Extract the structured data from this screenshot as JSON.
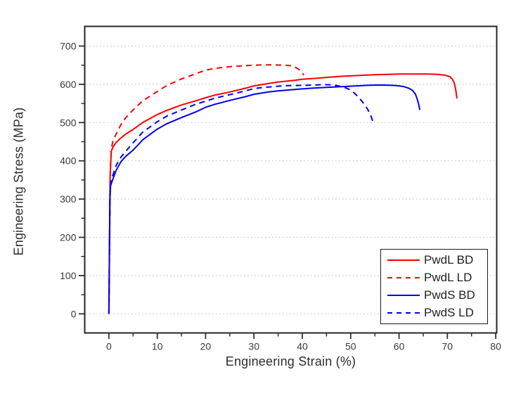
{
  "chart_data": {
    "type": "line",
    "title": "",
    "xlabel": "Engineering Strain (%)",
    "ylabel": "Engineering Stress (MPa)",
    "xlim": [
      -5,
      80.2
    ],
    "ylim": [
      -50,
      751.5
    ],
    "x_ticks": [
      0,
      10,
      20,
      30,
      40,
      50,
      60,
      70,
      80
    ],
    "y_ticks": [
      0,
      100,
      200,
      300,
      400,
      500,
      600,
      700
    ],
    "x_minor_ticks": [
      5,
      15,
      25,
      35,
      45,
      55,
      65,
      75
    ],
    "y_minor_ticks": [
      50,
      150,
      250,
      350,
      450,
      550,
      650
    ],
    "grid": "horizontal dotted at y majors",
    "legend_position": "inside bottom-right",
    "colors": {
      "axis": "#262626",
      "grid": "#c9c9c9",
      "tick_label": "#3a3a3a",
      "red": "#fe0000",
      "blue": "#0000f0"
    },
    "series": [
      {
        "name": "PwdL BD",
        "color": "#fe0000",
        "style": "solid",
        "points": [
          [
            0,
            0
          ],
          [
            0.25,
            360
          ],
          [
            0.5,
            425
          ],
          [
            0.8,
            435
          ],
          [
            1.5,
            448
          ],
          [
            2.5,
            460
          ],
          [
            3.5,
            470
          ],
          [
            5,
            482
          ],
          [
            7,
            500
          ],
          [
            10,
            521
          ],
          [
            12,
            532
          ],
          [
            15,
            546
          ],
          [
            18,
            557
          ],
          [
            20,
            565
          ],
          [
            22,
            572
          ],
          [
            25,
            580
          ],
          [
            28,
            589
          ],
          [
            30,
            596
          ],
          [
            33,
            602
          ],
          [
            35,
            606
          ],
          [
            38,
            610
          ],
          [
            40,
            613
          ],
          [
            42,
            615
          ],
          [
            45,
            618
          ],
          [
            48,
            621
          ],
          [
            50,
            622
          ],
          [
            53,
            624
          ],
          [
            55,
            625
          ],
          [
            58,
            626
          ],
          [
            60,
            627
          ],
          [
            62,
            627
          ],
          [
            64,
            627
          ],
          [
            66,
            627
          ],
          [
            68,
            626
          ],
          [
            69.5,
            624
          ],
          [
            70.5,
            620
          ],
          [
            71,
            614
          ],
          [
            71.4,
            604
          ],
          [
            71.7,
            588
          ],
          [
            71.9,
            570
          ],
          [
            72,
            563
          ]
        ]
      },
      {
        "name": "PwdL LD",
        "color": "#fe0000",
        "style": "dashed",
        "points": [
          [
            0,
            0
          ],
          [
            0.3,
            380
          ],
          [
            0.5,
            430
          ],
          [
            0.8,
            450
          ],
          [
            1.5,
            470
          ],
          [
            2.5,
            495
          ],
          [
            3.5,
            513
          ],
          [
            5,
            533
          ],
          [
            7,
            557
          ],
          [
            10,
            581
          ],
          [
            12,
            597
          ],
          [
            15,
            614
          ],
          [
            18,
            628
          ],
          [
            20,
            637
          ],
          [
            22,
            642
          ],
          [
            25,
            646
          ],
          [
            28,
            649
          ],
          [
            30,
            650
          ],
          [
            32,
            651
          ],
          [
            34,
            651
          ],
          [
            36,
            650
          ],
          [
            37.5,
            649
          ],
          [
            38.5,
            645
          ],
          [
            39.4,
            638
          ],
          [
            40,
            630
          ],
          [
            40.3,
            624
          ]
        ]
      },
      {
        "name": "PwdS BD",
        "color": "#0000f0",
        "style": "solid",
        "points": [
          [
            0,
            0
          ],
          [
            0.2,
            300
          ],
          [
            0.35,
            335
          ],
          [
            0.7,
            348
          ],
          [
            1.5,
            375
          ],
          [
            2.5,
            398
          ],
          [
            3.5,
            412
          ],
          [
            5,
            428
          ],
          [
            7,
            455
          ],
          [
            10,
            483
          ],
          [
            12,
            497
          ],
          [
            15,
            513
          ],
          [
            18,
            528
          ],
          [
            20,
            540
          ],
          [
            22,
            548
          ],
          [
            25,
            558
          ],
          [
            28,
            567
          ],
          [
            30,
            574
          ],
          [
            33,
            580
          ],
          [
            35,
            583
          ],
          [
            38,
            586
          ],
          [
            40,
            588
          ],
          [
            42,
            590
          ],
          [
            45,
            592
          ],
          [
            48,
            594
          ],
          [
            50,
            595
          ],
          [
            53,
            597
          ],
          [
            55,
            598
          ],
          [
            57,
            598
          ],
          [
            59,
            597
          ],
          [
            60,
            596
          ],
          [
            61,
            594
          ],
          [
            62,
            590
          ],
          [
            62.8,
            584
          ],
          [
            63.4,
            574
          ],
          [
            63.8,
            560
          ],
          [
            64.1,
            545
          ],
          [
            64.3,
            533
          ]
        ]
      },
      {
        "name": "PwdS LD",
        "color": "#0000f0",
        "style": "dashed",
        "points": [
          [
            0,
            0
          ],
          [
            0.2,
            310
          ],
          [
            0.4,
            345
          ],
          [
            0.8,
            362
          ],
          [
            1.5,
            388
          ],
          [
            2.5,
            410
          ],
          [
            3.5,
            425
          ],
          [
            5,
            447
          ],
          [
            7,
            475
          ],
          [
            10,
            502
          ],
          [
            12,
            517
          ],
          [
            15,
            533
          ],
          [
            18,
            548
          ],
          [
            20,
            556
          ],
          [
            22,
            564
          ],
          [
            25,
            573
          ],
          [
            28,
            582
          ],
          [
            30,
            589
          ],
          [
            32,
            592
          ],
          [
            34,
            594
          ],
          [
            36,
            596
          ],
          [
            38,
            597
          ],
          [
            40,
            597
          ],
          [
            42,
            598
          ],
          [
            44,
            599
          ],
          [
            45.5,
            599
          ],
          [
            47,
            597
          ],
          [
            48.5,
            593
          ],
          [
            49.5,
            588
          ],
          [
            50.5,
            580
          ],
          [
            51.5,
            568
          ],
          [
            52.5,
            553
          ],
          [
            53.5,
            535
          ],
          [
            54.2,
            517
          ],
          [
            54.6,
            502
          ]
        ]
      }
    ]
  }
}
